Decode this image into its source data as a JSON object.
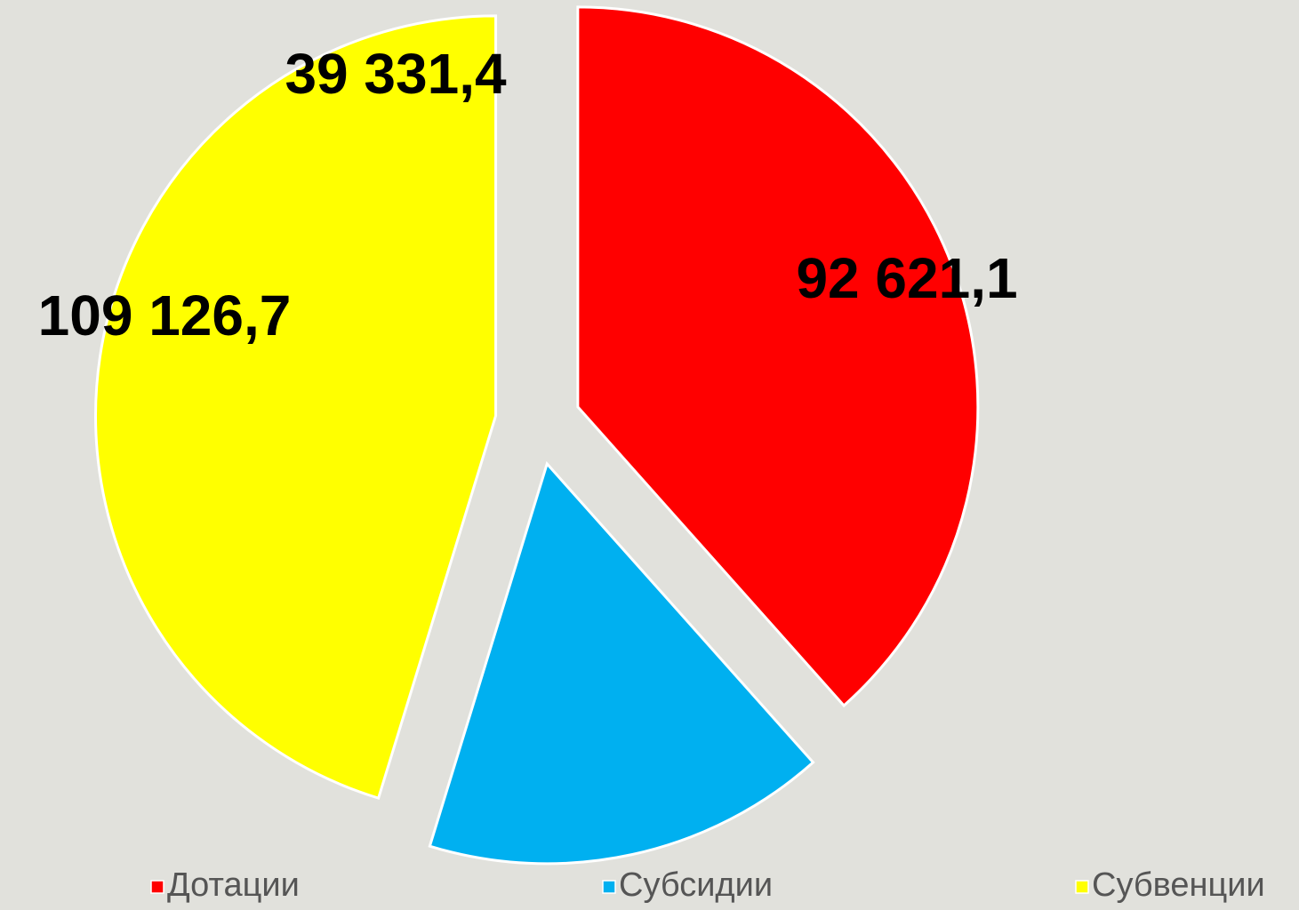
{
  "chart_data": {
    "type": "pie",
    "categories": [
      "Дотации",
      "Субсидии",
      "Субвенции"
    ],
    "values": [
      92621.1,
      39331.4,
      109126.7
    ],
    "value_labels": [
      "92 621,1",
      "39 331,4",
      "109 126,7"
    ],
    "colors": [
      "#ff0000",
      "#00b0f0",
      "#ffff00"
    ],
    "legend": "bottom"
  }
}
